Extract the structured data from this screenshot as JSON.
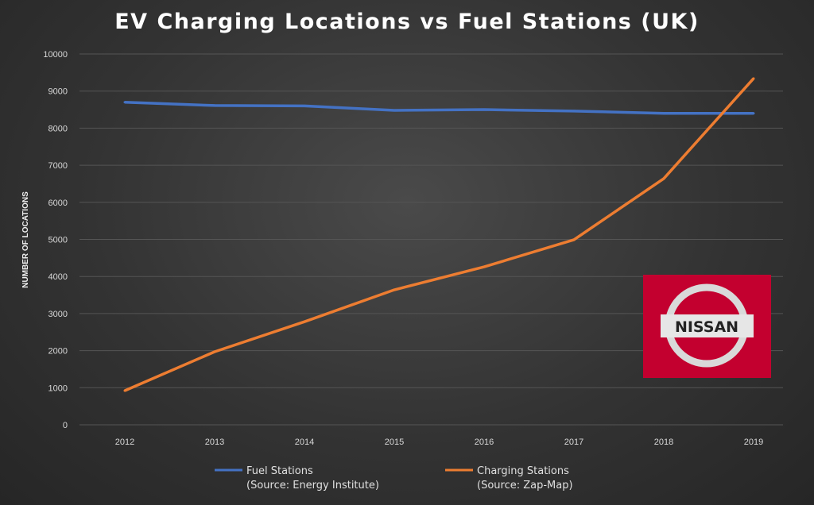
{
  "chart_data": {
    "type": "line",
    "title": "EV Charging Locations vs Fuel Stations (UK)",
    "xlabel": "",
    "ylabel": "NUMBER OF LOCATIONS",
    "ylim": [
      0,
      10000
    ],
    "yticks": [
      "0",
      "1000",
      "2000",
      "3000",
      "4000",
      "5000",
      "6000",
      "7000",
      "8000",
      "9000",
      "10000"
    ],
    "categories": [
      "2012",
      "2013",
      "2014",
      "2015",
      "2016",
      "2017",
      "2018",
      "2019"
    ],
    "grid": true,
    "legend_position": "bottom",
    "series": [
      {
        "name": "Fuel Stations",
        "source": "(Source: Energy Institute)",
        "color": "#4472C4",
        "values": [
          8700,
          8610,
          8600,
          8480,
          8500,
          8460,
          8400,
          8400
        ]
      },
      {
        "name": "Charging Stations",
        "source": "(Source: Zap-Map)",
        "color": "#ED7D31",
        "values": [
          920,
          1970,
          2780,
          3640,
          4260,
          4990,
          6640,
          9340
        ]
      }
    ]
  },
  "logo": {
    "text": "NISSAN",
    "background": "#C3002F"
  }
}
